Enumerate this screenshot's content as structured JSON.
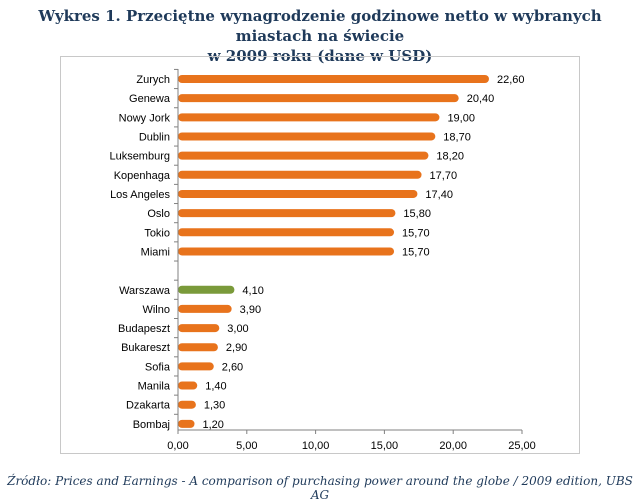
{
  "title_line1": "Wykres 1. Przeciętne wynagrodzenie godzinowe netto w wybranych miastach na świecie",
  "title_line2": "w 2009 roku (dane w USD)",
  "source": "Źródło: Prices and Earnings - A comparison of purchasing power around the globe / 2009 edition, UBS AG",
  "colors": {
    "bar": "#e8731c",
    "highlight": "#7a9a3a",
    "axis": "#808080"
  },
  "chart_data": {
    "type": "bar",
    "orientation": "horizontal",
    "categories": [
      "Zurych",
      "Genewa",
      "Nowy Jork",
      "Dublin",
      "Luksemburg",
      "Kopenhaga",
      "Los Angeles",
      "Oslo",
      "Tokio",
      "Miami",
      "",
      "Warszawa",
      "Wilno",
      "Budapeszt",
      "Bukareszt",
      "Sofia",
      "Manila",
      "Dzakarta",
      "Bombaj"
    ],
    "values": [
      22.6,
      20.4,
      19.0,
      18.7,
      18.2,
      17.7,
      17.4,
      15.8,
      15.7,
      15.7,
      null,
      4.1,
      3.9,
      3.0,
      2.9,
      2.6,
      1.4,
      1.3,
      1.2
    ],
    "value_labels": [
      "22,60",
      "20,40",
      "19,00",
      "18,70",
      "18,20",
      "17,70",
      "17,40",
      "15,80",
      "15,70",
      "15,70",
      "",
      "4,10",
      "3,90",
      "3,00",
      "2,90",
      "2,60",
      "1,40",
      "1,30",
      "1,20"
    ],
    "highlight": "Warszawa",
    "xlim": [
      0,
      25
    ],
    "xticks": [
      0,
      5,
      10,
      15,
      20,
      25
    ],
    "xtick_labels": [
      "0,00",
      "5,00",
      "10,00",
      "15,00",
      "20,00",
      "25,00"
    ],
    "grid": false,
    "legend": "none"
  }
}
